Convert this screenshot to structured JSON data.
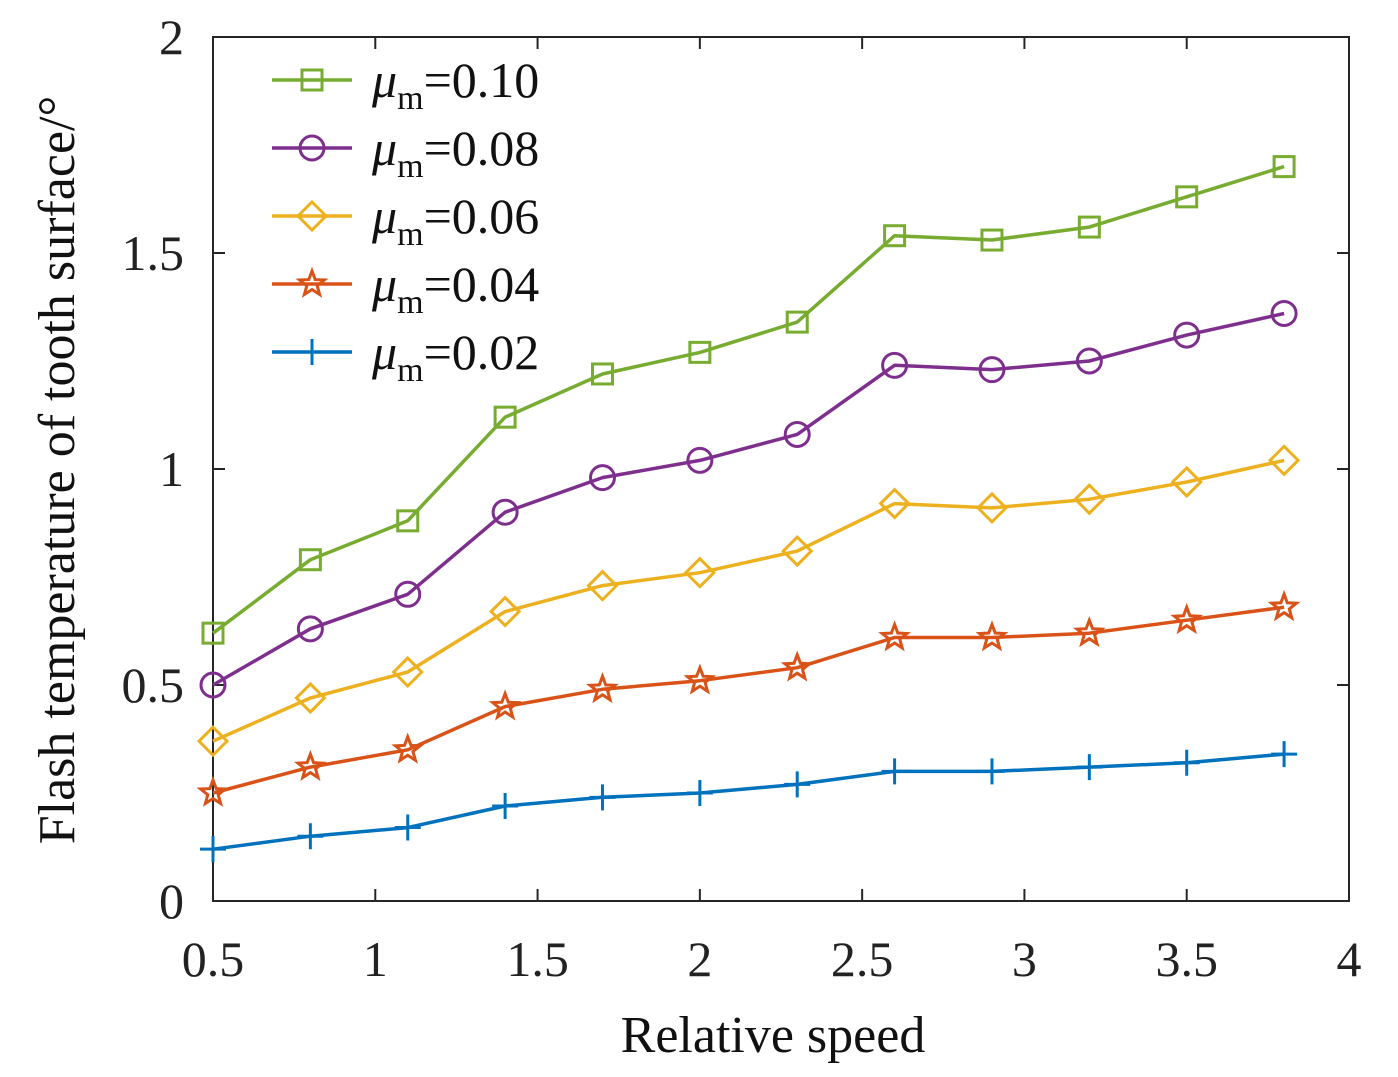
{
  "chart_data": {
    "type": "line",
    "title": "",
    "xlabel": "Relative speed",
    "ylabel": "Flash temperature of tooth surface/°",
    "xlim": [
      0.5,
      4
    ],
    "ylim": [
      0,
      2
    ],
    "xticks": [
      0.5,
      1,
      1.5,
      2,
      2.5,
      3,
      3.5,
      4
    ],
    "xtick_labels": [
      "0.5",
      "1",
      "1.5",
      "2",
      "2.5",
      "3",
      "3.5",
      "4"
    ],
    "yticks": [
      0,
      0.5,
      1,
      1.5,
      2
    ],
    "ytick_labels": [
      "0",
      "0.5",
      "1",
      "1.5",
      "2"
    ],
    "grid": false,
    "legend_position": "top-left",
    "x": [
      0.5,
      0.8,
      1.1,
      1.4,
      1.7,
      2.0,
      2.3,
      2.6,
      2.9,
      3.2,
      3.5,
      3.8
    ],
    "series": [
      {
        "name": "μm=0.10",
        "symbol": "μ",
        "subscript": "m",
        "suffix": "=0.10",
        "color": "#77AC30",
        "marker": "square",
        "values": [
          0.62,
          0.79,
          0.88,
          1.12,
          1.22,
          1.27,
          1.34,
          1.54,
          1.53,
          1.56,
          1.63,
          1.7
        ]
      },
      {
        "name": "μm=0.08",
        "symbol": "μ",
        "subscript": "m",
        "suffix": "=0.08",
        "color": "#7E2F8E",
        "marker": "circle",
        "values": [
          0.5,
          0.63,
          0.71,
          0.9,
          0.98,
          1.02,
          1.08,
          1.24,
          1.23,
          1.25,
          1.31,
          1.36
        ]
      },
      {
        "name": "μm=0.06",
        "symbol": "μ",
        "subscript": "m",
        "suffix": "=0.06",
        "color": "#EDB120",
        "marker": "diamond",
        "values": [
          0.37,
          0.47,
          0.53,
          0.67,
          0.73,
          0.76,
          0.81,
          0.92,
          0.91,
          0.93,
          0.97,
          1.02
        ]
      },
      {
        "name": "μm=0.04",
        "symbol": "μ",
        "subscript": "m",
        "suffix": "=0.04",
        "color": "#D95319",
        "marker": "star",
        "values": [
          0.25,
          0.31,
          0.35,
          0.45,
          0.49,
          0.51,
          0.54,
          0.61,
          0.61,
          0.62,
          0.65,
          0.68
        ]
      },
      {
        "name": "μm=0.02",
        "symbol": "μ",
        "subscript": "m",
        "suffix": "=0.02",
        "color": "#0072BD",
        "marker": "plus",
        "values": [
          0.12,
          0.15,
          0.17,
          0.22,
          0.24,
          0.25,
          0.27,
          0.3,
          0.3,
          0.31,
          0.32,
          0.34
        ]
      }
    ]
  }
}
